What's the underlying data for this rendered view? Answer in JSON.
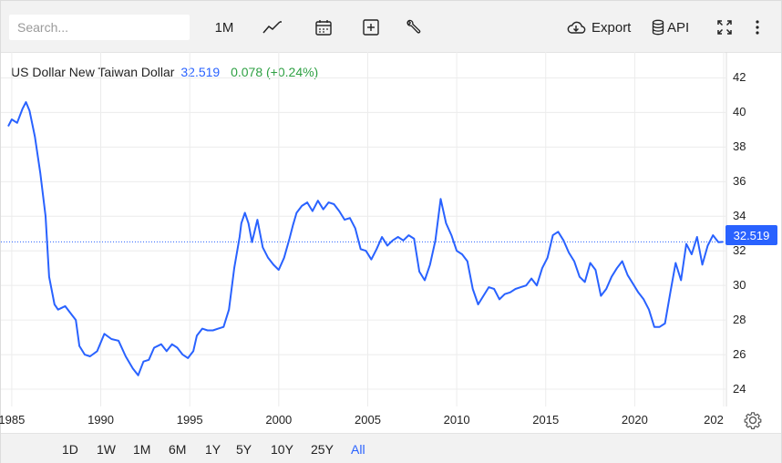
{
  "toolbar": {
    "search_placeholder": "Search...",
    "interval_label": "1M",
    "export_label": "Export",
    "api_label": "API",
    "icons": [
      "line-chart-icon",
      "calendar-icon",
      "plus-square-icon",
      "wrench-icon",
      "cloud-download-icon",
      "database-icon",
      "fullscreen-icon",
      "more-vertical-icon"
    ]
  },
  "legend": {
    "name": "US Dollar New Taiwan Dollar",
    "price": "32.519",
    "change": "0.078 (+0.24%)"
  },
  "price_tag": "32.519",
  "range_buttons": [
    "1D",
    "1W",
    "1M",
    "6M",
    "1Y",
    "5Y",
    "10Y",
    "25Y",
    "All"
  ],
  "active_range": "All",
  "colors": {
    "line": "#2962ff",
    "change_positive": "#2ea043",
    "grid": "#ececec",
    "background": "#ffffff"
  },
  "chart_data": {
    "type": "line",
    "series": [
      {
        "name": "US Dollar New Taiwan Dollar",
        "x": [
          1984.8,
          1985.0,
          1985.3,
          1985.6,
          1985.8,
          1986.0,
          1986.3,
          1986.6,
          1986.9,
          1987.1,
          1987.4,
          1987.6,
          1987.8,
          1988.0,
          1988.3,
          1988.6,
          1988.8,
          1989.1,
          1989.4,
          1989.8,
          1990.2,
          1990.6,
          1991.0,
          1991.4,
          1991.8,
          1992.1,
          1992.4,
          1992.7,
          1993.0,
          1993.4,
          1993.7,
          1994.0,
          1994.3,
          1994.6,
          1994.9,
          1995.2,
          1995.4,
          1995.7,
          1996.0,
          1996.3,
          1996.6,
          1996.9,
          1997.2,
          1997.5,
          1997.8,
          1997.9,
          1998.1,
          1998.3,
          1998.5,
          1998.8,
          1999.1,
          1999.4,
          1999.7,
          2000.0,
          2000.3,
          2000.6,
          2000.8,
          2001.0,
          2001.3,
          2001.6,
          2001.9,
          2002.2,
          2002.5,
          2002.8,
          2003.1,
          2003.4,
          2003.7,
          2004.0,
          2004.3,
          2004.6,
          2004.9,
          2005.2,
          2005.5,
          2005.8,
          2006.1,
          2006.4,
          2006.7,
          2007.0,
          2007.3,
          2007.6,
          2007.9,
          2008.2,
          2008.5,
          2008.8,
          2009.1,
          2009.4,
          2009.7,
          2010.0,
          2010.3,
          2010.6,
          2010.9,
          2011.2,
          2011.5,
          2011.8,
          2012.1,
          2012.4,
          2012.7,
          2013.0,
          2013.3,
          2013.6,
          2013.9,
          2014.2,
          2014.5,
          2014.8,
          2015.1,
          2015.4,
          2015.7,
          2016.0,
          2016.3,
          2016.6,
          2016.9,
          2017.2,
          2017.5,
          2017.8,
          2018.1,
          2018.4,
          2018.7,
          2019.0,
          2019.3,
          2019.6,
          2019.9,
          2020.2,
          2020.5,
          2020.8,
          2021.1,
          2021.4,
          2021.7,
          2022.0,
          2022.3,
          2022.6,
          2022.9,
          2023.2,
          2023.5,
          2023.8,
          2024.1,
          2024.4,
          2024.7,
          2024.95
        ],
        "values": [
          39.2,
          39.6,
          39.4,
          40.2,
          40.6,
          40.1,
          38.6,
          36.5,
          34.0,
          30.5,
          28.9,
          28.6,
          28.7,
          28.8,
          28.4,
          28.0,
          26.5,
          26.0,
          25.9,
          26.2,
          27.2,
          26.9,
          26.8,
          25.9,
          25.2,
          24.8,
          25.6,
          25.7,
          26.4,
          26.6,
          26.2,
          26.6,
          26.4,
          26.0,
          25.8,
          26.2,
          27.1,
          27.5,
          27.4,
          27.4,
          27.5,
          27.6,
          28.6,
          31.0,
          32.8,
          33.6,
          34.2,
          33.6,
          32.5,
          33.8,
          32.2,
          31.6,
          31.2,
          30.9,
          31.6,
          32.7,
          33.5,
          34.2,
          34.6,
          34.8,
          34.3,
          34.9,
          34.4,
          34.8,
          34.7,
          34.3,
          33.8,
          33.9,
          33.3,
          32.1,
          32.0,
          31.5,
          32.1,
          32.8,
          32.3,
          32.6,
          32.8,
          32.6,
          32.9,
          32.7,
          30.8,
          30.3,
          31.2,
          32.6,
          35.0,
          33.6,
          32.9,
          32.0,
          31.8,
          31.4,
          29.8,
          28.9,
          29.4,
          29.9,
          29.8,
          29.2,
          29.5,
          29.6,
          29.8,
          29.9,
          30.0,
          30.4,
          30.0,
          31.0,
          31.6,
          32.9,
          33.1,
          32.6,
          31.9,
          31.4,
          30.5,
          30.2,
          31.3,
          30.9,
          29.4,
          29.8,
          30.5,
          31.0,
          31.4,
          30.6,
          30.1,
          29.6,
          29.2,
          28.6,
          27.6,
          27.6,
          27.8,
          29.6,
          31.3,
          30.3,
          32.4,
          31.8,
          32.8,
          31.2,
          32.3,
          32.9,
          32.5,
          32.519
        ]
      }
    ],
    "x_ticks": [
      "1985",
      "1990",
      "1995",
      "2000",
      "2005",
      "2010",
      "2015",
      "2020",
      "202"
    ],
    "y_ticks": [
      "24",
      "26",
      "28",
      "30",
      "32",
      "34",
      "36",
      "38",
      "40",
      "42"
    ],
    "xlim": [
      1984.8,
      2025.1
    ],
    "ylim": [
      23.0,
      43.5
    ],
    "grid": true,
    "last_value": 32.519
  }
}
